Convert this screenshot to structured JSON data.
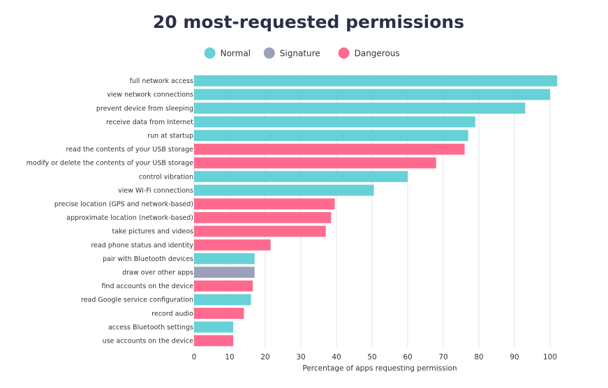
{
  "chart_data": {
    "type": "bar",
    "orientation": "horizontal",
    "title": "20 most-requested permissions",
    "xlabel": "Percentage of apps requesting permission",
    "ylabel": "",
    "xlim": [
      0,
      100
    ],
    "x_ticks": [
      0,
      10,
      20,
      30,
      40,
      50,
      60,
      70,
      80,
      90,
      100
    ],
    "grid": true,
    "legend_position": "top-center",
    "legend": [
      {
        "name": "Normal",
        "color": "#66d1d6"
      },
      {
        "name": "Signature",
        "color": "#9b9fb8"
      },
      {
        "name": "Dangerous",
        "color": "#ff6b8e"
      }
    ],
    "categories": [
      "full network access",
      "view network connections",
      "prevent device from sleeping",
      "receive data from Internet",
      "run at startup",
      "read the contents of your USB storage",
      "modify or delete the contents of your USB storage",
      "control vibration",
      "view Wi-Fi connections",
      "precise location (GPS and network-based)",
      "approximate location (network-based)",
      "take pictures and videos",
      "read phone status and identity",
      "pair with Bluetooth devices",
      "draw over other apps",
      "find accounts on the device",
      "read Google service configuration",
      "record audio",
      "access Bluetooth settings",
      "use accounts on the device"
    ],
    "values": [
      102,
      100,
      93,
      79,
      77,
      76,
      68,
      60,
      50.5,
      39.5,
      38.5,
      37,
      21.5,
      17,
      17,
      16.5,
      16,
      14,
      11,
      11
    ],
    "types": [
      "Normal",
      "Normal",
      "Normal",
      "Normal",
      "Normal",
      "Dangerous",
      "Dangerous",
      "Normal",
      "Normal",
      "Dangerous",
      "Dangerous",
      "Dangerous",
      "Dangerous",
      "Normal",
      "Signature",
      "Dangerous",
      "Normal",
      "Dangerous",
      "Normal",
      "Dangerous"
    ]
  }
}
